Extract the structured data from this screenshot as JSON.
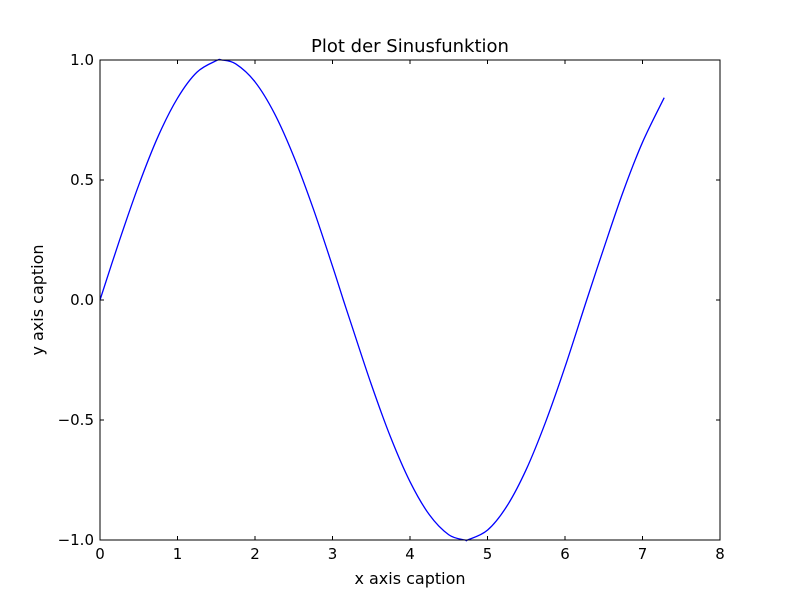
{
  "chart_data": {
    "type": "line",
    "title": "Plot der Sinusfunktion",
    "xlabel": "x axis caption",
    "ylabel": "y axis caption",
    "xlim": [
      0,
      8
    ],
    "ylim": [
      -1.0,
      1.0
    ],
    "x_ticks": [
      0,
      1,
      2,
      3,
      4,
      5,
      6,
      7,
      8
    ],
    "x_tick_labels": [
      "0",
      "1",
      "2",
      "3",
      "4",
      "5",
      "6",
      "7",
      "8"
    ],
    "y_ticks": [
      1.0,
      0.5,
      0.0,
      -0.5,
      -1.0
    ],
    "y_tick_labels": [
      "1.0",
      "0.5",
      "0.0",
      "−0.5",
      "−1.0"
    ],
    "grid": false,
    "legend": "none",
    "line_color": "#0000ff",
    "series": [
      {
        "function": "sin(x)",
        "x": [
          0,
          0.25,
          0.5,
          0.75,
          1.0,
          1.25,
          1.5,
          1.57,
          1.75,
          2.0,
          2.25,
          2.5,
          2.75,
          3.0,
          3.14,
          3.25,
          3.5,
          3.75,
          4.0,
          4.25,
          4.5,
          4.71,
          4.75,
          5.0,
          5.25,
          5.5,
          5.75,
          6.0,
          6.28,
          6.5,
          6.75,
          7.0,
          7.28
        ],
        "y": [
          0.0,
          0.247,
          0.479,
          0.682,
          0.841,
          0.949,
          0.997,
          1.0,
          0.984,
          0.909,
          0.778,
          0.598,
          0.382,
          0.141,
          0.0,
          -0.108,
          -0.351,
          -0.572,
          -0.757,
          -0.895,
          -0.978,
          -1.0,
          -0.999,
          -0.959,
          -0.859,
          -0.706,
          -0.508,
          -0.279,
          0.0,
          0.215,
          0.451,
          0.657,
          0.843
        ]
      }
    ]
  }
}
